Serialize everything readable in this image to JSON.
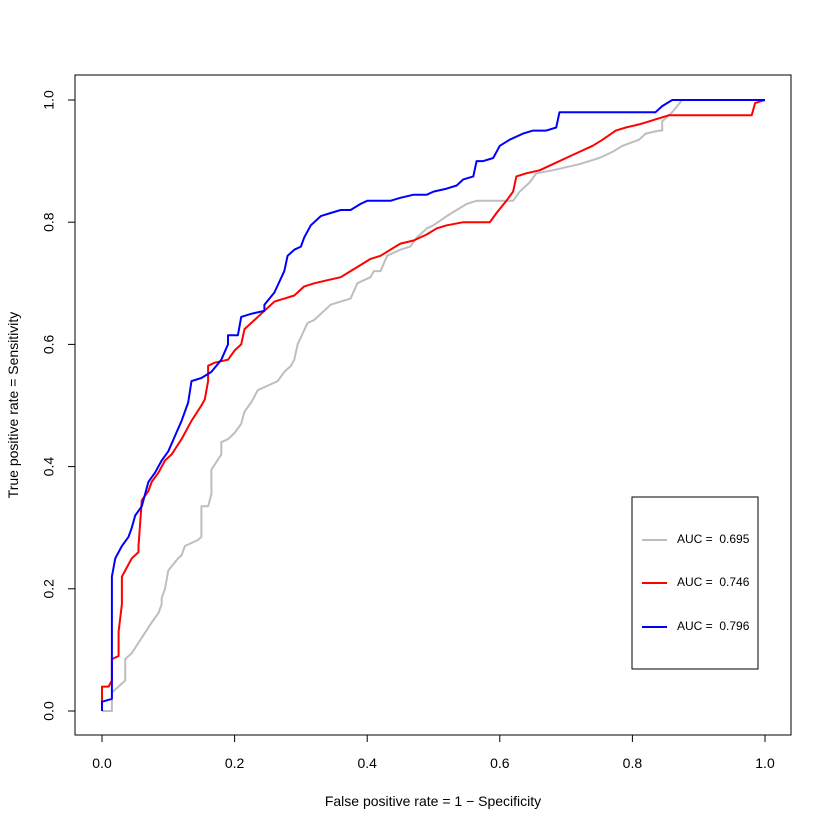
{
  "chart_data": {
    "type": "line",
    "title": "",
    "xlabel": "False positive rate = 1 − Specificity",
    "ylabel": "True positive rate = Sensitivity",
    "xlim": [
      0,
      1
    ],
    "ylim": [
      0,
      1
    ],
    "x_ticks": [
      "0.0",
      "0.2",
      "0.4",
      "0.6",
      "0.8",
      "1.0"
    ],
    "y_ticks": [
      "0.0",
      "0.2",
      "0.4",
      "0.6",
      "0.8",
      "1.0"
    ],
    "grid": false,
    "legend_position": "bottom-right",
    "series": [
      {
        "name": "AUC =  0.695",
        "color": "#bebebe",
        "points": [
          [
            0,
            0
          ],
          [
            0.015,
            0
          ],
          [
            0.015,
            0.03
          ],
          [
            0.03,
            0.045
          ],
          [
            0.035,
            0.05
          ],
          [
            0.035,
            0.085
          ],
          [
            0.045,
            0.095
          ],
          [
            0.06,
            0.12
          ],
          [
            0.075,
            0.145
          ],
          [
            0.085,
            0.16
          ],
          [
            0.09,
            0.175
          ],
          [
            0.09,
            0.185
          ],
          [
            0.095,
            0.2
          ],
          [
            0.1,
            0.23
          ],
          [
            0.115,
            0.25
          ],
          [
            0.12,
            0.255
          ],
          [
            0.125,
            0.27
          ],
          [
            0.135,
            0.275
          ],
          [
            0.145,
            0.28
          ],
          [
            0.15,
            0.285
          ],
          [
            0.15,
            0.335
          ],
          [
            0.16,
            0.335
          ],
          [
            0.165,
            0.355
          ],
          [
            0.165,
            0.395
          ],
          [
            0.18,
            0.42
          ],
          [
            0.18,
            0.44
          ],
          [
            0.19,
            0.445
          ],
          [
            0.2,
            0.455
          ],
          [
            0.21,
            0.47
          ],
          [
            0.215,
            0.49
          ],
          [
            0.225,
            0.505
          ],
          [
            0.235,
            0.525
          ],
          [
            0.255,
            0.535
          ],
          [
            0.265,
            0.54
          ],
          [
            0.275,
            0.555
          ],
          [
            0.285,
            0.565
          ],
          [
            0.29,
            0.575
          ],
          [
            0.295,
            0.6
          ],
          [
            0.31,
            0.635
          ],
          [
            0.32,
            0.64
          ],
          [
            0.335,
            0.655
          ],
          [
            0.345,
            0.665
          ],
          [
            0.36,
            0.67
          ],
          [
            0.375,
            0.675
          ],
          [
            0.385,
            0.7
          ],
          [
            0.395,
            0.705
          ],
          [
            0.405,
            0.71
          ],
          [
            0.41,
            0.72
          ],
          [
            0.42,
            0.72
          ],
          [
            0.43,
            0.745
          ],
          [
            0.45,
            0.755
          ],
          [
            0.465,
            0.76
          ],
          [
            0.475,
            0.775
          ],
          [
            0.49,
            0.79
          ],
          [
            0.5,
            0.795
          ],
          [
            0.52,
            0.81
          ],
          [
            0.535,
            0.82
          ],
          [
            0.55,
            0.83
          ],
          [
            0.565,
            0.835
          ],
          [
            0.58,
            0.835
          ],
          [
            0.61,
            0.835
          ],
          [
            0.62,
            0.835
          ],
          [
            0.63,
            0.85
          ],
          [
            0.645,
            0.865
          ],
          [
            0.655,
            0.88
          ],
          [
            0.68,
            0.885
          ],
          [
            0.7,
            0.89
          ],
          [
            0.72,
            0.895
          ],
          [
            0.735,
            0.9
          ],
          [
            0.75,
            0.905
          ],
          [
            0.77,
            0.915
          ],
          [
            0.785,
            0.925
          ],
          [
            0.81,
            0.935
          ],
          [
            0.82,
            0.945
          ],
          [
            0.84,
            0.95
          ],
          [
            0.845,
            0.95
          ],
          [
            0.845,
            0.965
          ],
          [
            0.86,
            0.98
          ],
          [
            0.875,
            1
          ],
          [
            1,
            1
          ]
        ]
      },
      {
        "name": "AUC =  0.746",
        "color": "#ff0000",
        "points": [
          [
            0,
            0
          ],
          [
            0,
            0.04
          ],
          [
            0.01,
            0.04
          ],
          [
            0.015,
            0.05
          ],
          [
            0.015,
            0.085
          ],
          [
            0.025,
            0.09
          ],
          [
            0.025,
            0.13
          ],
          [
            0.03,
            0.175
          ],
          [
            0.03,
            0.22
          ],
          [
            0.04,
            0.24
          ],
          [
            0.045,
            0.25
          ],
          [
            0.055,
            0.26
          ],
          [
            0.055,
            0.27
          ],
          [
            0.06,
            0.345
          ],
          [
            0.07,
            0.36
          ],
          [
            0.075,
            0.375
          ],
          [
            0.085,
            0.39
          ],
          [
            0.095,
            0.41
          ],
          [
            0.105,
            0.42
          ],
          [
            0.12,
            0.445
          ],
          [
            0.135,
            0.475
          ],
          [
            0.15,
            0.5
          ],
          [
            0.155,
            0.51
          ],
          [
            0.16,
            0.54
          ],
          [
            0.16,
            0.565
          ],
          [
            0.17,
            0.57
          ],
          [
            0.19,
            0.575
          ],
          [
            0.2,
            0.59
          ],
          [
            0.21,
            0.6
          ],
          [
            0.215,
            0.625
          ],
          [
            0.23,
            0.64
          ],
          [
            0.245,
            0.655
          ],
          [
            0.26,
            0.67
          ],
          [
            0.275,
            0.675
          ],
          [
            0.29,
            0.68
          ],
          [
            0.305,
            0.695
          ],
          [
            0.32,
            0.7
          ],
          [
            0.34,
            0.705
          ],
          [
            0.36,
            0.71
          ],
          [
            0.375,
            0.72
          ],
          [
            0.39,
            0.73
          ],
          [
            0.405,
            0.74
          ],
          [
            0.42,
            0.745
          ],
          [
            0.435,
            0.755
          ],
          [
            0.45,
            0.765
          ],
          [
            0.47,
            0.77
          ],
          [
            0.49,
            0.78
          ],
          [
            0.505,
            0.79
          ],
          [
            0.52,
            0.795
          ],
          [
            0.545,
            0.8
          ],
          [
            0.57,
            0.8
          ],
          [
            0.585,
            0.8
          ],
          [
            0.595,
            0.815
          ],
          [
            0.61,
            0.835
          ],
          [
            0.62,
            0.85
          ],
          [
            0.625,
            0.875
          ],
          [
            0.64,
            0.88
          ],
          [
            0.66,
            0.885
          ],
          [
            0.68,
            0.895
          ],
          [
            0.7,
            0.905
          ],
          [
            0.72,
            0.915
          ],
          [
            0.74,
            0.925
          ],
          [
            0.755,
            0.935
          ],
          [
            0.775,
            0.95
          ],
          [
            0.79,
            0.955
          ],
          [
            0.81,
            0.96
          ],
          [
            0.825,
            0.965
          ],
          [
            0.84,
            0.97
          ],
          [
            0.855,
            0.975
          ],
          [
            0.88,
            0.975
          ],
          [
            0.9,
            0.975
          ],
          [
            0.95,
            0.975
          ],
          [
            0.98,
            0.975
          ],
          [
            0.985,
            0.995
          ],
          [
            1,
            1
          ]
        ]
      },
      {
        "name": "AUC =  0.796",
        "color": "#0000ff",
        "points": [
          [
            0,
            0
          ],
          [
            0,
            0.015
          ],
          [
            0.015,
            0.02
          ],
          [
            0.015,
            0.22
          ],
          [
            0.02,
            0.25
          ],
          [
            0.03,
            0.27
          ],
          [
            0.04,
            0.285
          ],
          [
            0.045,
            0.3
          ],
          [
            0.05,
            0.32
          ],
          [
            0.06,
            0.335
          ],
          [
            0.07,
            0.375
          ],
          [
            0.08,
            0.39
          ],
          [
            0.09,
            0.41
          ],
          [
            0.1,
            0.425
          ],
          [
            0.11,
            0.45
          ],
          [
            0.12,
            0.475
          ],
          [
            0.13,
            0.505
          ],
          [
            0.135,
            0.54
          ],
          [
            0.15,
            0.545
          ],
          [
            0.165,
            0.555
          ],
          [
            0.18,
            0.575
          ],
          [
            0.19,
            0.6
          ],
          [
            0.19,
            0.615
          ],
          [
            0.205,
            0.615
          ],
          [
            0.21,
            0.645
          ],
          [
            0.225,
            0.65
          ],
          [
            0.245,
            0.655
          ],
          [
            0.245,
            0.665
          ],
          [
            0.26,
            0.685
          ],
          [
            0.275,
            0.72
          ],
          [
            0.28,
            0.745
          ],
          [
            0.29,
            0.755
          ],
          [
            0.3,
            0.76
          ],
          [
            0.305,
            0.775
          ],
          [
            0.315,
            0.795
          ],
          [
            0.33,
            0.81
          ],
          [
            0.345,
            0.815
          ],
          [
            0.36,
            0.82
          ],
          [
            0.375,
            0.82
          ],
          [
            0.39,
            0.83
          ],
          [
            0.4,
            0.835
          ],
          [
            0.415,
            0.835
          ],
          [
            0.435,
            0.835
          ],
          [
            0.45,
            0.84
          ],
          [
            0.47,
            0.845
          ],
          [
            0.49,
            0.845
          ],
          [
            0.5,
            0.85
          ],
          [
            0.52,
            0.855
          ],
          [
            0.535,
            0.86
          ],
          [
            0.545,
            0.87
          ],
          [
            0.56,
            0.875
          ],
          [
            0.565,
            0.9
          ],
          [
            0.575,
            0.9
          ],
          [
            0.59,
            0.905
          ],
          [
            0.6,
            0.925
          ],
          [
            0.615,
            0.935
          ],
          [
            0.635,
            0.945
          ],
          [
            0.65,
            0.95
          ],
          [
            0.67,
            0.95
          ],
          [
            0.685,
            0.955
          ],
          [
            0.69,
            0.98
          ],
          [
            0.7,
            0.98
          ],
          [
            0.75,
            0.98
          ],
          [
            0.8,
            0.98
          ],
          [
            0.835,
            0.98
          ],
          [
            0.845,
            0.99
          ],
          [
            0.86,
            1
          ],
          [
            1,
            1
          ]
        ]
      }
    ]
  }
}
